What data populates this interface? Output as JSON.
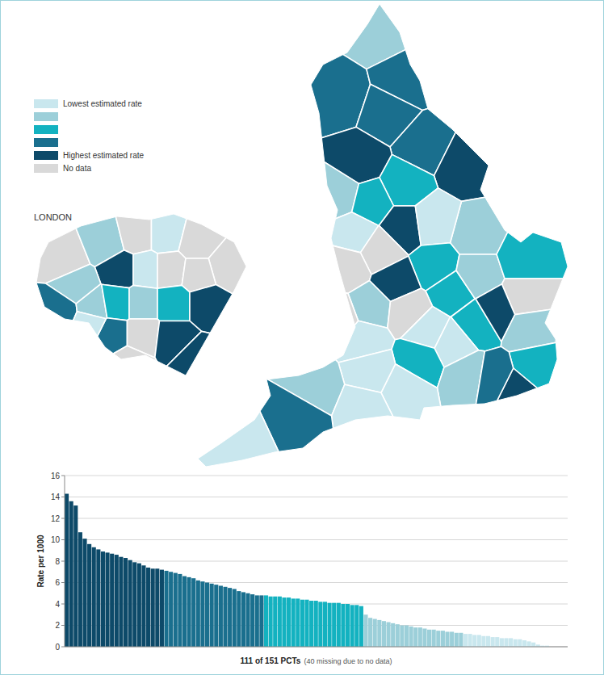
{
  "chart_data": {
    "type": "bar",
    "y_label": "Rate per 1000",
    "x_label": "111 of 151 PCTs",
    "x_label_note": "(40 missing due to no data)",
    "categories": [
      null,
      null,
      null,
      null,
      null,
      null,
      null,
      null,
      null,
      null,
      null,
      null,
      null,
      null,
      null,
      null,
      null,
      null,
      null,
      null,
      null,
      null,
      null,
      null,
      null,
      null,
      null,
      null,
      null,
      null,
      null,
      null,
      null,
      null,
      null,
      null,
      null,
      null,
      null,
      null,
      null,
      null,
      null,
      null,
      null,
      null,
      null,
      null,
      null,
      null,
      null,
      null,
      null,
      null,
      null,
      null,
      null,
      null,
      null,
      null,
      null,
      null,
      null,
      null,
      null,
      null,
      null,
      null,
      null,
      null,
      null,
      null,
      null,
      null,
      null,
      null,
      null,
      null,
      null,
      null,
      null,
      null,
      null,
      null,
      null,
      null,
      null,
      null,
      null,
      null,
      null,
      null,
      null,
      null,
      null,
      null,
      null,
      null,
      null,
      null,
      null,
      null,
      null,
      null,
      null,
      null,
      null,
      null,
      null,
      null,
      null
    ],
    "values": [
      14.3,
      13.6,
      13.2,
      10.7,
      10.1,
      9.6,
      9.3,
      9.1,
      8.9,
      8.8,
      8.7,
      8.6,
      8.4,
      8.3,
      8.1,
      7.9,
      7.8,
      7.6,
      7.4,
      7.3,
      7.3,
      7.2,
      7.1,
      7.0,
      6.9,
      6.8,
      6.6,
      6.5,
      6.4,
      6.2,
      6.1,
      6.0,
      5.9,
      5.8,
      5.7,
      5.6,
      5.5,
      5.4,
      5.2,
      5.1,
      5.0,
      4.9,
      4.8,
      4.8,
      4.8,
      4.7,
      4.7,
      4.7,
      4.6,
      4.6,
      4.5,
      4.5,
      4.4,
      4.4,
      4.3,
      4.3,
      4.2,
      4.2,
      4.1,
      4.1,
      4.1,
      4.0,
      4.0,
      3.9,
      3.9,
      3.8,
      3.0,
      2.7,
      2.6,
      2.5,
      2.4,
      2.3,
      2.2,
      2.1,
      2.0,
      2.0,
      1.9,
      1.8,
      1.8,
      1.7,
      1.6,
      1.6,
      1.5,
      1.5,
      1.4,
      1.4,
      1.3,
      1.3,
      1.2,
      1.2,
      1.1,
      1.1,
      1.0,
      1.0,
      0.9,
      0.9,
      0.8,
      0.8,
      0.8,
      0.7,
      0.7,
      0.6,
      0.5,
      0.4,
      0.2,
      0.1,
      0.1,
      0,
      0,
      0,
      0
    ],
    "colors": [
      "#0d4a69",
      "#0d4a69",
      "#0d4a69",
      "#0d4a69",
      "#0d4a69",
      "#0d4a69",
      "#0d4a69",
      "#0d4a69",
      "#0d4a69",
      "#0d4a69",
      "#0d4a69",
      "#0d4a69",
      "#0d4a69",
      "#0d4a69",
      "#0d4a69",
      "#0d4a69",
      "#0d4a69",
      "#0d4a69",
      "#0d4a69",
      "#0d4a69",
      "#0d4a69",
      "#0d4a69",
      "#1a6f8e",
      "#1a6f8e",
      "#1a6f8e",
      "#1a6f8e",
      "#1a6f8e",
      "#1a6f8e",
      "#1a6f8e",
      "#1a6f8e",
      "#1a6f8e",
      "#1a6f8e",
      "#1a6f8e",
      "#1a6f8e",
      "#1a6f8e",
      "#1a6f8e",
      "#1a6f8e",
      "#1a6f8e",
      "#1a6f8e",
      "#1a6f8e",
      "#1a6f8e",
      "#1a6f8e",
      "#1a6f8e",
      "#1a6f8e",
      "#13b2c0",
      "#13b2c0",
      "#13b2c0",
      "#13b2c0",
      "#13b2c0",
      "#13b2c0",
      "#13b2c0",
      "#13b2c0",
      "#13b2c0",
      "#13b2c0",
      "#13b2c0",
      "#13b2c0",
      "#13b2c0",
      "#13b2c0",
      "#13b2c0",
      "#13b2c0",
      "#13b2c0",
      "#13b2c0",
      "#13b2c0",
      "#13b2c0",
      "#13b2c0",
      "#13b2c0",
      "#9ccfd9",
      "#9ccfd9",
      "#9ccfd9",
      "#9ccfd9",
      "#9ccfd9",
      "#9ccfd9",
      "#9ccfd9",
      "#9ccfd9",
      "#9ccfd9",
      "#9ccfd9",
      "#9ccfd9",
      "#9ccfd9",
      "#9ccfd9",
      "#9ccfd9",
      "#9ccfd9",
      "#9ccfd9",
      "#9ccfd9",
      "#9ccfd9",
      "#9ccfd9",
      "#9ccfd9",
      "#9ccfd9",
      "#9ccfd9",
      "#c9e7ee",
      "#c9e7ee",
      "#c9e7ee",
      "#c9e7ee",
      "#c9e7ee",
      "#c9e7ee",
      "#c9e7ee",
      "#c9e7ee",
      "#c9e7ee",
      "#c9e7ee",
      "#c9e7ee",
      "#c9e7ee",
      "#c9e7ee",
      "#c9e7ee",
      "#c9e7ee",
      "#c9e7ee",
      "#c9e7ee",
      "#c9e7ee",
      "#c9e7ee",
      "#c9e7ee",
      "#c9e7ee",
      "#c9e7ee",
      "#c9e7ee"
    ],
    "ylim": [
      0,
      16
    ],
    "yticks": [
      0,
      2,
      4,
      6,
      8,
      10,
      12,
      14,
      16
    ],
    "grid": true,
    "tick_labels": "y"
  },
  "map": {
    "london_label": "LONDON",
    "legend": [
      {
        "label": "Lowest estimated rate",
        "color": "#c9e7ee"
      },
      {
        "color": "#9ccfd9"
      },
      {
        "color": "#13b2c0"
      },
      {
        "color": "#1a6f8e"
      },
      {
        "label": "Highest estimated rate",
        "color": "#0d4a69"
      },
      {
        "label": "No data",
        "color": "#d9d9d9"
      }
    ],
    "england_regions": [
      1,
      3,
      3,
      3,
      3,
      4,
      4,
      2,
      1,
      2,
      4,
      0,
      1,
      0,
      5,
      5,
      2,
      4,
      2,
      1,
      2,
      5,
      1,
      5,
      0,
      2,
      4,
      1,
      0,
      0,
      2,
      2,
      1,
      4,
      3,
      0,
      0,
      1,
      0,
      3,
      0,
      5
    ],
    "london_regions": [
      5,
      1,
      5,
      0,
      5,
      5,
      4,
      0,
      5,
      5,
      1,
      3,
      1,
      2,
      1,
      2,
      4,
      3,
      5,
      4,
      4,
      5,
      0
    ]
  }
}
